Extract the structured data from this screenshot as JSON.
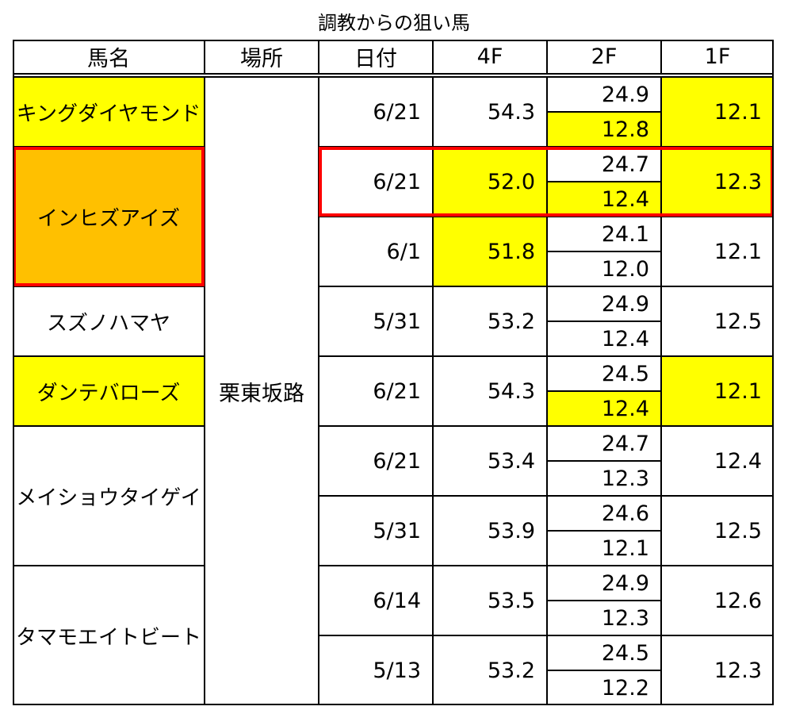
{
  "title": "調教からの狙い馬",
  "headers": [
    "馬名",
    "場所",
    "日付",
    "4F",
    "2F",
    "1F"
  ],
  "place": "栗東坂路",
  "colors": {
    "yellow": "#ffff00",
    "orange": "#ffc000",
    "highlight_border": "#ff0000"
  },
  "horses": [
    {
      "name": "キングダイヤモンド",
      "fill": "yellow",
      "highlighted": false
    },
    {
      "name": "インヒズアイズ",
      "fill": "orange",
      "highlighted": true
    },
    {
      "name": "スズノハマヤ",
      "fill": "none",
      "highlighted": false
    },
    {
      "name": "ダンテバローズ",
      "fill": "yellow",
      "highlighted": false
    },
    {
      "name": "メイショウタイゲイ",
      "fill": "none",
      "highlighted": false
    },
    {
      "name": "タマモエイトビート",
      "fill": "none",
      "highlighted": false
    }
  ],
  "rows": [
    {
      "horse": 0,
      "date": "6/21",
      "f4": "54.3",
      "f4_fill": "none",
      "f2": "24.9",
      "split": "12.8",
      "split_fill": "yellow",
      "f1": "12.1",
      "f1_fill": "yellow",
      "highlighted": false
    },
    {
      "horse": 1,
      "date": "6/21",
      "f4": "52.0",
      "f4_fill": "yellow",
      "f2": "24.7",
      "split": "12.4",
      "split_fill": "yellow",
      "f1": "12.3",
      "f1_fill": "yellow",
      "highlighted": true
    },
    {
      "horse": 1,
      "date": "6/1",
      "f4": "51.8",
      "f4_fill": "yellow",
      "f2": "24.1",
      "split": "12.0",
      "split_fill": "none",
      "f1": "12.1",
      "f1_fill": "none",
      "highlighted": false
    },
    {
      "horse": 2,
      "date": "5/31",
      "f4": "53.2",
      "f4_fill": "none",
      "f2": "24.9",
      "split": "12.4",
      "split_fill": "none",
      "f1": "12.5",
      "f1_fill": "none",
      "highlighted": false
    },
    {
      "horse": 3,
      "date": "6/21",
      "f4": "54.3",
      "f4_fill": "none",
      "f2": "24.5",
      "split": "12.4",
      "split_fill": "yellow",
      "f1": "12.1",
      "f1_fill": "yellow",
      "highlighted": false
    },
    {
      "horse": 4,
      "date": "6/21",
      "f4": "53.4",
      "f4_fill": "none",
      "f2": "24.7",
      "split": "12.3",
      "split_fill": "none",
      "f1": "12.4",
      "f1_fill": "none",
      "highlighted": false
    },
    {
      "horse": 4,
      "date": "5/31",
      "f4": "53.9",
      "f4_fill": "none",
      "f2": "24.6",
      "split": "12.1",
      "split_fill": "none",
      "f1": "12.5",
      "f1_fill": "none",
      "highlighted": false
    },
    {
      "horse": 5,
      "date": "6/14",
      "f4": "53.5",
      "f4_fill": "none",
      "f2": "24.9",
      "split": "12.3",
      "split_fill": "none",
      "f1": "12.6",
      "f1_fill": "none",
      "highlighted": false
    },
    {
      "horse": 5,
      "date": "5/13",
      "f4": "53.2",
      "f4_fill": "none",
      "f2": "24.5",
      "split": "12.2",
      "split_fill": "none",
      "f1": "12.3",
      "f1_fill": "none",
      "highlighted": false
    }
  ]
}
